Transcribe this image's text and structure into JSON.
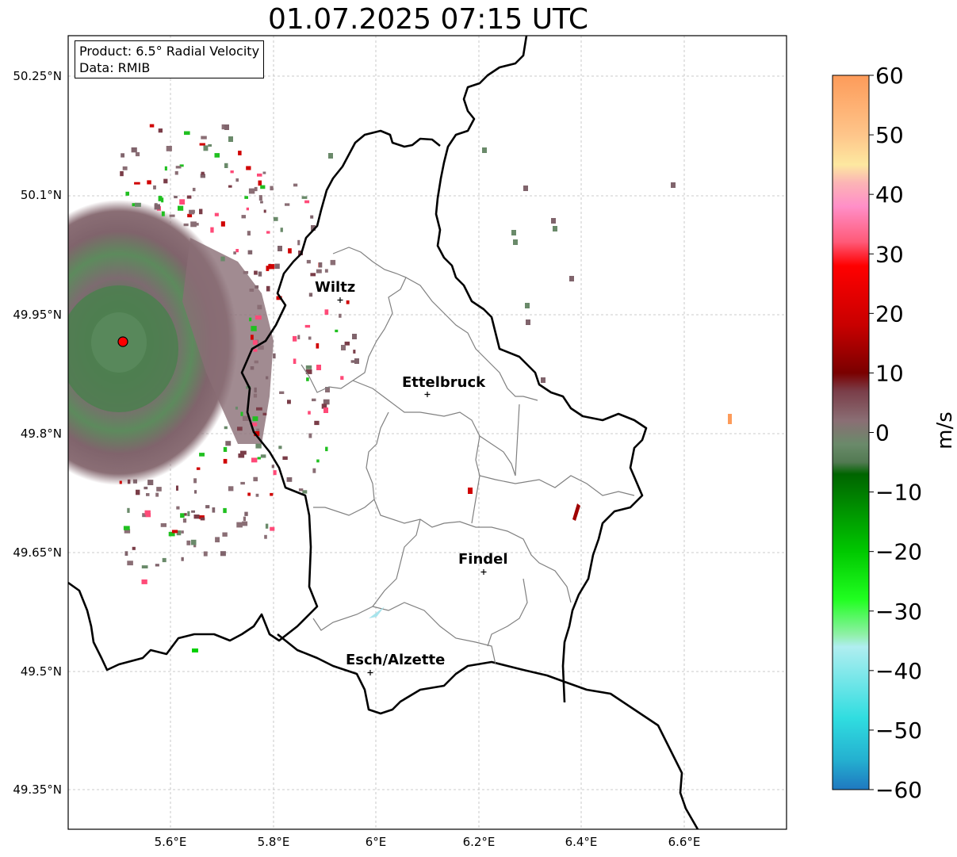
{
  "title": "01.07.2025 07:15 UTC",
  "info": {
    "product_line": "Product: 6.5° Radial Velocity",
    "data_line": "Data: RMIB"
  },
  "map": {
    "lon_ticks": [
      "5.6°E",
      "5.8°E",
      "6°E",
      "6.2°E",
      "6.4°E",
      "6.6°E"
    ],
    "lat_ticks": [
      "50.25°N",
      "50.1°N",
      "49.95°N",
      "49.8°N",
      "49.65°N",
      "49.5°N",
      "49.35°N"
    ],
    "cities": [
      {
        "name": "Wiltz"
      },
      {
        "name": "Ettelbruck"
      },
      {
        "name": "Findel"
      },
      {
        "name": "Esch/Alzette"
      }
    ]
  },
  "colorbar": {
    "unit": "m/s",
    "ticks": [
      "60",
      "50",
      "40",
      "30",
      "20",
      "10",
      "0",
      "−10",
      "−20",
      "−30",
      "−40",
      "−50",
      "−60"
    ],
    "range": [
      -60,
      60
    ],
    "stops": [
      {
        "v": 60,
        "c": "#fd9b5a"
      },
      {
        "v": 50,
        "c": "#fec58a"
      },
      {
        "v": 45,
        "c": "#fde8a0"
      },
      {
        "v": 42,
        "c": "#fcb5b5"
      },
      {
        "v": 38,
        "c": "#ff8fc8"
      },
      {
        "v": 32,
        "c": "#ff5a78"
      },
      {
        "v": 28,
        "c": "#ff0000"
      },
      {
        "v": 18,
        "c": "#c80000"
      },
      {
        "v": 10,
        "c": "#7a0000"
      },
      {
        "v": 7,
        "c": "#7a3d48"
      },
      {
        "v": 2,
        "c": "#8a6e74"
      },
      {
        "v": -2,
        "c": "#6a8a6a"
      },
      {
        "v": -5,
        "c": "#527a52"
      },
      {
        "v": -7,
        "c": "#006400"
      },
      {
        "v": -20,
        "c": "#00c800"
      },
      {
        "v": -28,
        "c": "#20ff20"
      },
      {
        "v": -34,
        "c": "#90f0a8"
      },
      {
        "v": -36,
        "c": "#b0eef0"
      },
      {
        "v": -48,
        "c": "#30dde0"
      },
      {
        "v": -55,
        "c": "#24b0d0"
      },
      {
        "v": -60,
        "c": "#1f78c0"
      }
    ]
  }
}
